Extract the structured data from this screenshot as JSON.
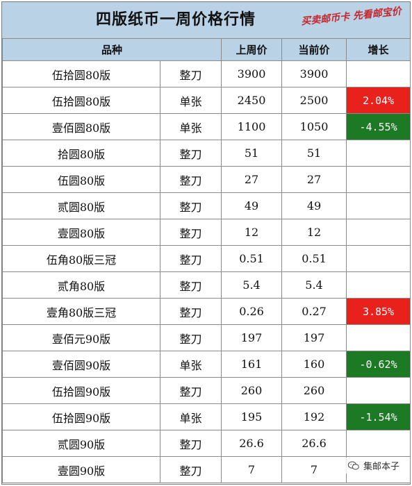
{
  "title": "四版纸币一周价格行情",
  "slogan": "买卖邮币卡 先看邮宝价",
  "headers": {
    "variety": "品种",
    "last_week": "上周价",
    "current": "当前价",
    "growth": "增长"
  },
  "rows": [
    {
      "name": "伍拾圆80版",
      "unit": "整刀",
      "last": "3900",
      "current": "3900",
      "growth": "",
      "trend": "none"
    },
    {
      "name": "伍拾圆80版",
      "unit": "单张",
      "last": "2450",
      "current": "2500",
      "growth": "2.04%",
      "trend": "up"
    },
    {
      "name": "壹佰圆80版",
      "unit": "单张",
      "last": "1100",
      "current": "1050",
      "growth": "-4.55%",
      "trend": "down"
    },
    {
      "name": "拾圆80版",
      "unit": "整刀",
      "last": "51",
      "current": "51",
      "growth": "",
      "trend": "none"
    },
    {
      "name": "伍圆80版",
      "unit": "整刀",
      "last": "27",
      "current": "27",
      "growth": "",
      "trend": "none"
    },
    {
      "name": "贰圆80版",
      "unit": "整刀",
      "last": "49",
      "current": "49",
      "growth": "",
      "trend": "none"
    },
    {
      "name": "壹圆80版",
      "unit": "整刀",
      "last": "12",
      "current": "12",
      "growth": "",
      "trend": "none"
    },
    {
      "name": "伍角80版三冠",
      "unit": "整刀",
      "last": "0.51",
      "current": "0.51",
      "growth": "",
      "trend": "none"
    },
    {
      "name": "贰角80版",
      "unit": "整刀",
      "last": "5.4",
      "current": "5.4",
      "growth": "",
      "trend": "none"
    },
    {
      "name": "壹角80版三冠",
      "unit": "整刀",
      "last": "0.26",
      "current": "0.27",
      "growth": "3.85%",
      "trend": "up"
    },
    {
      "name": "壹佰元90版",
      "unit": "整刀",
      "last": "197",
      "current": "197",
      "growth": "",
      "trend": "none"
    },
    {
      "name": "壹佰圆90版",
      "unit": "单张",
      "last": "161",
      "current": "160",
      "growth": "-0.62%",
      "trend": "down"
    },
    {
      "name": "伍拾圆90版",
      "unit": "整刀",
      "last": "260",
      "current": "260",
      "growth": "",
      "trend": "none"
    },
    {
      "name": "伍拾圆90版",
      "unit": "单张",
      "last": "195",
      "current": "192",
      "growth": "-1.54%",
      "trend": "down"
    },
    {
      "name": "贰圆90版",
      "unit": "整刀",
      "last": "26.6",
      "current": "26.6",
      "growth": "",
      "trend": "none"
    },
    {
      "name": "壹圆90版",
      "unit": "整刀",
      "last": "7",
      "current": "7",
      "growth": "",
      "trend": "none"
    }
  ],
  "colors": {
    "header_bg": "#b9d2e6",
    "up": "#e8211d",
    "down": "#1d7a24",
    "slogan": "#c4262e"
  },
  "watermark": {
    "icon": "wechat-icon",
    "label": "集邮本子"
  }
}
